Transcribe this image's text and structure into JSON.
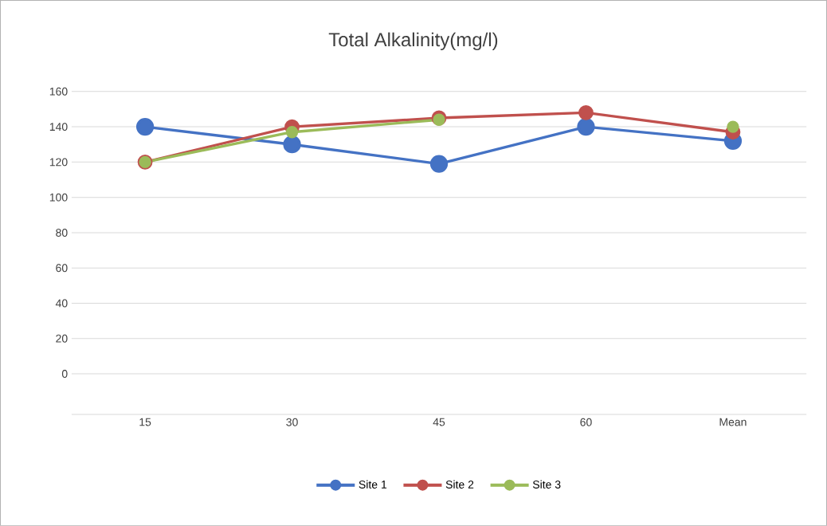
{
  "chart_data": {
    "type": "line",
    "title": "Total Alkalinity(mg/l)",
    "categories": [
      "15",
      "30",
      "45",
      "60",
      "Mean"
    ],
    "series": [
      {
        "name": "Site 1",
        "color": "#4472c4",
        "values": [
          140,
          130,
          119,
          140,
          132
        ]
      },
      {
        "name": "Site 2",
        "color": "#c0504d",
        "values": [
          120,
          140,
          145,
          148,
          137
        ]
      },
      {
        "name": "Site 3",
        "color": "#9bbb59",
        "values": [
          120,
          137,
          144,
          null,
          140
        ]
      }
    ],
    "ylim": [
      -23,
      160
    ],
    "yticks": [
      {
        "value": -23,
        "label": null
      },
      0,
      20,
      40,
      60,
      80,
      100,
      120,
      140,
      160
    ],
    "grid": "y",
    "legend": "bottom",
    "marker": "circle",
    "line_style": "solid"
  }
}
